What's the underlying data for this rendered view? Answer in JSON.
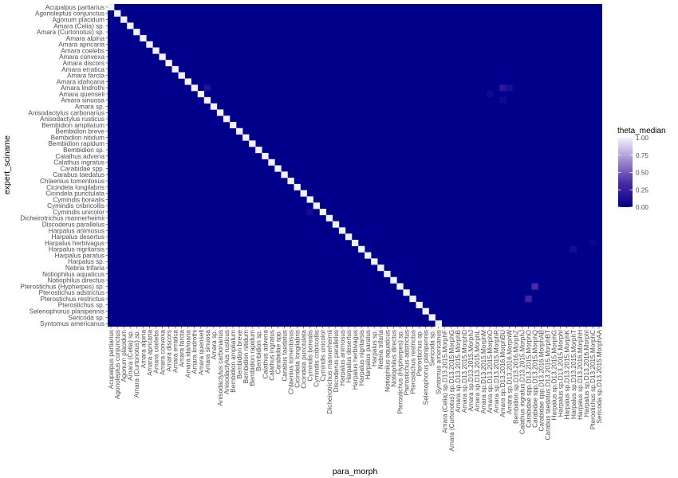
{
  "chart_data": {
    "type": "heatmap",
    "xlabel": "para_morph",
    "ylabel": "expert_sciname",
    "y_categories": [
      "Acupalpus partiarius",
      "Agonoleptus conjunctus",
      "Agonum placidum",
      "Amara (Celia) sp.",
      "Amara (Curtonotus) sp.",
      "Amara alpina",
      "Amara apricaria",
      "Amara coelebs",
      "Amara convexa",
      "Amara discors",
      "Amara erratica",
      "Amara farcta",
      "Amara idahoana",
      "Amara lindrothi",
      "Amara quenseli",
      "Amara sinuosa",
      "Amara sp.",
      "Anisodactylus carbonarius",
      "Anisodactylus rusticus",
      "Bembidion ampliatum",
      "Bembidion breve",
      "Bembidion nitidum",
      "Bembidion rapidum",
      "Bembidion sp.",
      "Calathus advena",
      "Calathus ingratus",
      "Carabidae spp.",
      "Carabus taedatus",
      "Chlaenius tomentosus",
      "Cicindela longilabris",
      "Cicindela punctulata",
      "Cymindis borealis",
      "Cymindis cribricollis",
      "Cymindis unicolor",
      "Dicheirotrichus mannerheimii",
      "Discoderus parallelus",
      "Harpalus animosus",
      "Harpalus desertus",
      "Harpalus herbivagus",
      "Harpalus nigritarsis",
      "Harpalus paratus",
      "Harpalus sp.",
      "Nebria trifaria",
      "Notiophilus aquaticus",
      "Notiophilus directus",
      "Pterostichus (Hypherpes) sp.",
      "Pterostichus adstrictus",
      "Pterostichus restrictus",
      "Pterostichus sp.",
      "Selenophorus planipennis",
      "Sericoda sp.",
      "Syntomus americanus"
    ],
    "x_categories": [
      "Acupalpus partiarius",
      "Agonoleptus conjunctus",
      "Agonum placidum",
      "Amara (Celia) sp.",
      "Amara (Curtonotus) sp.",
      "Amara alpina",
      "Amara apricaria",
      "Amara coelebs",
      "Amara convexa",
      "Amara discors",
      "Amara erratica",
      "Amara farcta",
      "Amara idahoana",
      "Amara lindrothi",
      "Amara quenseli",
      "Amara sinuosa",
      "Amara sp.",
      "Anisodactylus carbonarius",
      "Anisodactylus rusticus",
      "Bembidion ampliatum",
      "Bembidion breve",
      "Bembidion nitidum",
      "Bembidion rapidum",
      "Bembidion sp.",
      "Calathus advena",
      "Calathus ingratus",
      "Carabidae spp.",
      "Carabus taedatus",
      "Chlaenius tomentosus",
      "Cicindela longilabris",
      "Cicindela punctulata",
      "Cymindis borealis",
      "Cymindis cribricollis",
      "Cymindis unicolor",
      "Dicheirotrichus mannerheimii",
      "Discoderus parallelus",
      "Harpalus animosus",
      "Harpalus desertus",
      "Harpalus herbivagus",
      "Harpalus nigritarsis",
      "Harpalus paratus",
      "Harpalus sp.",
      "Nebria trifaria",
      "Notiophilus aquaticus",
      "Notiophilus directus",
      "Pterostichus (Hypherpes) sp.",
      "Pterostichus adstrictus",
      "Pterostichus restrictus",
      "Pterostichus sp.",
      "Selenophorus planipennis",
      "Sericoda sp.",
      "Syntomus americanus",
      "Amara (Celia) sp.D13.2015.MorphF",
      "Amara (Curtonotus) sp.D13.2015.MorphG",
      "Amara sp.D13.2015.MorphB",
      "Amara sp.D13.2015.MorphD",
      "Amara sp.D13.2015.MorphJ",
      "Amara sp.D13.2015.MorphL",
      "Amara sp.D13.2015.MorphM",
      "Amara sp.D13.2015.MorphO",
      "Amara sp.D13.2015.MorphR",
      "Amara sp.D13.2016.MorphBU",
      "Amara sp.D13.2016.MorphW",
      "Bembidion sp.D13.2016.MorphZ",
      "Calathus ingratus.D13.2015.MorphJ",
      "Carabidae spp.D13.2015.MorphO",
      "Carabidae spp.D13.2015.MorphQ",
      "Carabidae spp.D13.2016.MorphAB",
      "Carabus taedatus.D13.2015.MorphBT",
      "Harpalus sp.D13.2015.MorphG",
      "Harpalus sp.D13.2015.MorphI",
      "Harpalus sp.D13.2015.MorphK",
      "Harpalus sp.D13.2015.MorphT",
      "Harpalus sp.D13.2016.MorphH",
      "Harpalus sp.D13.2016.MorphI",
      "Pterostichus sp.D13.2015.MorphC",
      "Sericoda sp.D13.2015.MorphAA"
    ],
    "diagonal_value": 1.0,
    "background_value": 0.0,
    "offdiag_cells": [
      {
        "row": "Amara lindrothi",
        "col": "Amara sinuosa",
        "value": 0.15
      },
      {
        "row": "Amara lindrothi",
        "col": "Amara sp.D13.2016.MorphBU",
        "value": 0.2
      },
      {
        "row": "Amara lindrothi",
        "col": "Amara sp.D13.2016.MorphW",
        "value": 0.12
      },
      {
        "row": "Amara quenseli",
        "col": "Amara sp.D13.2015.MorphO",
        "value": 0.08
      },
      {
        "row": "Amara sinuosa",
        "col": "Amara sp.D13.2016.MorphBU",
        "value": 0.08
      },
      {
        "row": "Cymindis unicolor",
        "col": "Cymindis borealis",
        "value": 0.1
      },
      {
        "row": "Harpalus nigritarsis",
        "col": "Harpalus sp.D13.2015.MorphT",
        "value": 0.1
      },
      {
        "row": "Harpalus herbivagus",
        "col": "Pterostichus sp.D13.2015.MorphC",
        "value": 0.06
      },
      {
        "row": "Pterostichus (Hypherpes) sp.",
        "col": "Carabidae spp.D13.2015.MorphQ",
        "value": 0.35
      },
      {
        "row": "Pterostichus restrictus",
        "col": "Carabidae spp.D13.2015.MorphO",
        "value": 0.3
      }
    ],
    "legend": {
      "title": "theta_median",
      "ticks": [
        "1.00",
        "0.75",
        "0.50",
        "0.25",
        "0.00"
      ],
      "tick_values": [
        1.0,
        0.75,
        0.5,
        0.25,
        0.0
      ],
      "placement": "right"
    },
    "colors": {
      "low": "#00008b",
      "high": "#f2f0f8",
      "mid": "#6a4fb5"
    },
    "grid": false
  }
}
